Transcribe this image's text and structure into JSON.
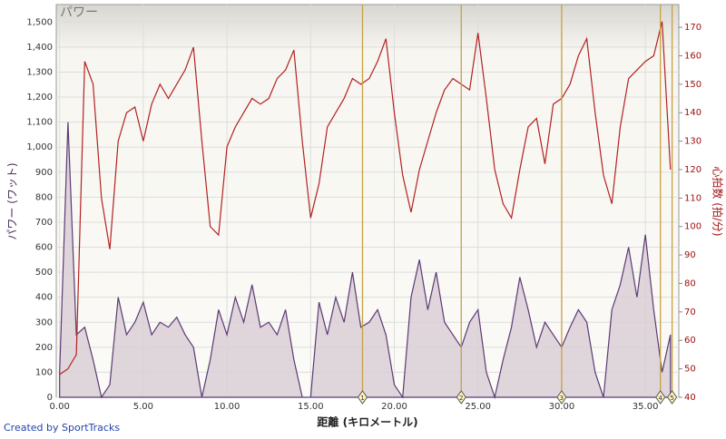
{
  "chart_data": {
    "type": "area-line",
    "title": "パワー",
    "ylabel": "パワー (ワット)",
    "y2label": "心拍数 (拍/分)",
    "xlabel": "距離 (キロメートル)",
    "footer": "Created by SportTracks",
    "x": [
      0,
      0.5,
      1,
      1.5,
      2,
      2.5,
      3,
      3.5,
      4,
      4.5,
      5,
      5.5,
      6,
      6.5,
      7,
      7.5,
      8,
      8.5,
      9,
      9.5,
      10,
      10.5,
      11,
      11.5,
      12,
      12.5,
      13,
      13.5,
      14,
      14.5,
      15,
      15.5,
      16,
      16.5,
      17,
      17.5,
      18,
      18.5,
      19,
      19.5,
      20,
      20.5,
      21,
      21.5,
      22,
      22.5,
      23,
      23.5,
      24,
      24.5,
      25,
      25.5,
      26,
      26.5,
      27,
      27.5,
      28,
      28.5,
      29,
      29.5,
      30,
      30.5,
      31,
      31.5,
      32,
      32.5,
      33,
      33.5,
      34,
      34.5,
      35,
      35.5,
      36,
      36.5
    ],
    "series": [
      {
        "name": "パワー",
        "color": "#5b3a75",
        "fill": "#d9cfd6",
        "values": [
          100,
          1100,
          250,
          280,
          150,
          0,
          50,
          400,
          250,
          300,
          380,
          250,
          300,
          280,
          320,
          250,
          200,
          0,
          150,
          350,
          250,
          400,
          300,
          450,
          280,
          300,
          250,
          350,
          150,
          0,
          0,
          380,
          250,
          400,
          300,
          500,
          280,
          300,
          350,
          250,
          50,
          0,
          400,
          550,
          350,
          500,
          300,
          250,
          200,
          300,
          350,
          100,
          0,
          150,
          280,
          480,
          350,
          200,
          300,
          250,
          200,
          280,
          350,
          300,
          100,
          0,
          350,
          450,
          600,
          400,
          650,
          350,
          100,
          250
        ]
      },
      {
        "name": "心拍数",
        "color": "#b22222",
        "axis": "y2",
        "values": [
          48,
          50,
          55,
          158,
          150,
          110,
          92,
          130,
          140,
          142,
          130,
          143,
          150,
          145,
          150,
          155,
          163,
          130,
          100,
          97,
          128,
          135,
          140,
          145,
          143,
          145,
          152,
          155,
          162,
          130,
          103,
          115,
          135,
          140,
          145,
          152,
          150,
          152,
          158,
          166,
          140,
          118,
          105,
          120,
          130,
          140,
          148,
          152,
          150,
          148,
          168,
          145,
          120,
          108,
          103,
          120,
          135,
          138,
          122,
          143,
          145,
          150,
          160,
          166,
          140,
          118,
          108,
          135,
          152,
          155,
          158,
          160,
          172,
          120
        ]
      }
    ],
    "laps": [
      {
        "x": 18.1,
        "label": "1"
      },
      {
        "x": 24.0,
        "label": "2"
      },
      {
        "x": 30.0,
        "label": "3"
      },
      {
        "x": 35.9,
        "label": "4"
      },
      {
        "x": 36.6,
        "label": "5"
      }
    ],
    "lap_color": "#c8a040",
    "xlim": [
      -0.2,
      37
    ],
    "xticks": [
      {
        "value": 0,
        "label": "0.00"
      },
      {
        "value": 5,
        "label": "5.00"
      },
      {
        "value": 10,
        "label": "10.00"
      },
      {
        "value": 15,
        "label": "15.00"
      },
      {
        "value": 20,
        "label": "20.00"
      },
      {
        "value": 25,
        "label": "25.00"
      },
      {
        "value": 30,
        "label": "30.00"
      },
      {
        "value": 35,
        "label": "35.00"
      }
    ],
    "ylim": [
      0,
      1570
    ],
    "yticks": [
      0,
      100,
      200,
      300,
      400,
      500,
      600,
      700,
      800,
      900,
      {
        "value": 1000,
        "label": "1,000"
      },
      {
        "value": 1100,
        "label": "1,100"
      },
      {
        "value": 1200,
        "label": "1,200"
      },
      {
        "value": 1300,
        "label": "1,300"
      },
      {
        "value": 1400,
        "label": "1,400"
      },
      {
        "value": 1500,
        "label": "1,500"
      }
    ],
    "y2lim": [
      40,
      178
    ],
    "y2ticks": [
      40,
      50,
      60,
      70,
      80,
      90,
      100,
      110,
      120,
      130,
      140,
      150,
      160,
      170
    ],
    "grid": true
  }
}
